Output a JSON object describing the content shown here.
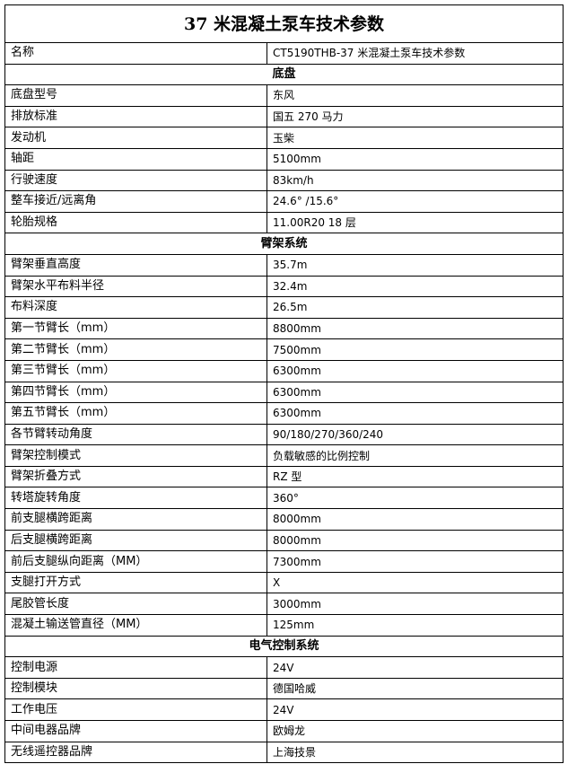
{
  "title": "37 米混凝土泵车技术参数",
  "rows": [
    {
      "type": "row",
      "label": "名称",
      "value": "CT5190THB-37 米混凝土泵车技术参数"
    },
    {
      "type": "section",
      "label": "底盘"
    },
    {
      "type": "row",
      "label": "底盘型号",
      "value": "东风"
    },
    {
      "type": "row",
      "label": "排放标准",
      "value": "国五 270 马力"
    },
    {
      "type": "row",
      "label": "发动机",
      "value": "玉柴"
    },
    {
      "type": "row",
      "label": "轴距",
      "value": "5100mm"
    },
    {
      "type": "row",
      "label": "行驶速度",
      "value": "83km/h"
    },
    {
      "type": "row",
      "label": "整车接近/远离角",
      "value": "24.6° /15.6°"
    },
    {
      "type": "row",
      "label": "轮胎规格",
      "value": "11.00R20   18 层"
    },
    {
      "type": "section",
      "label": "臂架系统"
    },
    {
      "type": "row",
      "label": "臂架垂直高度",
      "value": "35.7m"
    },
    {
      "type": "row",
      "label": "臂架水平布料半径",
      "value": "32.4m"
    },
    {
      "type": "row",
      "label": "布料深度",
      "value": "26.5m"
    },
    {
      "type": "row",
      "label": "第一节臂长（mm）",
      "value": "8800mm"
    },
    {
      "type": "row",
      "label": "第二节臂长（mm）",
      "value": "7500mm"
    },
    {
      "type": "row",
      "label": "第三节臂长（mm）",
      "value": "6300mm"
    },
    {
      "type": "row",
      "label": "第四节臂长（mm）",
      "value": "6300mm"
    },
    {
      "type": "row",
      "label": "第五节臂长（mm）",
      "value": "6300mm"
    },
    {
      "type": "row",
      "label": "各节臂转动角度",
      "value": "90/180/270/360/240"
    },
    {
      "type": "row",
      "label": "臂架控制模式",
      "value": "负载敏感的比例控制"
    },
    {
      "type": "row",
      "label": "臂架折叠方式",
      "value": "RZ 型"
    },
    {
      "type": "row",
      "label": "转塔旋转角度",
      "value": "360°"
    },
    {
      "type": "row",
      "label": "前支腿横跨距离",
      "value": "8000mm"
    },
    {
      "type": "row",
      "label": "后支腿横跨距离",
      "value": "8000mm"
    },
    {
      "type": "row",
      "label": "前后支腿纵向距离（MM）",
      "value": "7300mm"
    },
    {
      "type": "row",
      "label": "支腿打开方式",
      "value": "X"
    },
    {
      "type": "row",
      "label": "尾胶管长度",
      "value": "3000mm"
    },
    {
      "type": "row",
      "label": "混凝土输送管直径（MM）",
      "value": "125mm"
    },
    {
      "type": "section",
      "label": "电气控制系统"
    },
    {
      "type": "row",
      "label": "控制电源",
      "value": "24V"
    },
    {
      "type": "row",
      "label": "控制模块",
      "value": "德国哈威"
    },
    {
      "type": "row",
      "label": "工作电压",
      "value": "24V"
    },
    {
      "type": "row",
      "label": "中间电器品牌",
      "value": "欧姆龙"
    },
    {
      "type": "row",
      "label": "无线遥控器品牌",
      "value": "上海技景"
    }
  ]
}
